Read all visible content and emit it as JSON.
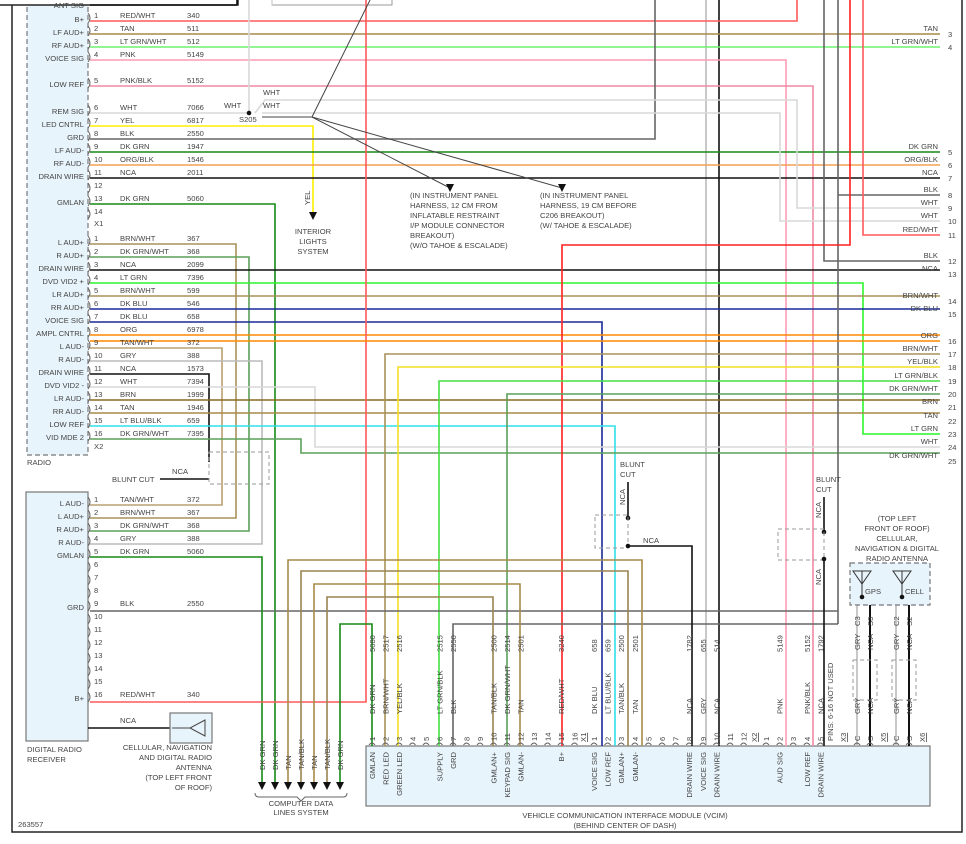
{
  "diagram_id": "263557",
  "wire_colors": {
    "RED/WHT": "#ff5a5a",
    "TAN": "#a88a4a",
    "LT GRN/WHT": "#6ef06e",
    "PNK": "#ff9cb4",
    "PNK/BLK": "#f08aa4",
    "WHT": "#d8d8d8",
    "YEL": "#ffee00",
    "BLK": "#666666",
    "DK GRN": "#168a16",
    "ORG/BLK": "#f4a050",
    "NCA": "#111111",
    "BRN/WHT": "#a8925a",
    "DK GRN/WHT": "#5aa05a",
    "LT GRN": "#2cf52c",
    "DK BLU": "#1a2a9a",
    "ORG": "#ff8800",
    "TAN/WHT": "#baa070",
    "GRY": "#bbbbbb",
    "BRN": "#8a6a20",
    "LT BLU/BLK": "#2fe0e8",
    "YEL/BLK": "#f2e020",
    "LT GRN/BLK": "#44e044",
    "TAN/BLK": "#9a8450",
    "RED": "#ff2020"
  },
  "radio": {
    "label": "RADIO",
    "ant_sig": "ANT SIG",
    "x1_label": "X1",
    "x2_label": "X2",
    "x1": [
      {
        "pin": "1",
        "func": "B+",
        "color": "RED/WHT",
        "circuit": "340"
      },
      {
        "pin": "2",
        "func": "LF AUD+",
        "color": "TAN",
        "circuit": "511"
      },
      {
        "pin": "3",
        "func": "RF AUD+",
        "color": "LT GRN/WHT",
        "circuit": "512"
      },
      {
        "pin": "4",
        "func": "VOICE SIG",
        "color": "PNK",
        "circuit": "5149"
      },
      {
        "pin": "5",
        "func": "LOW REF",
        "color": "PNK/BLK",
        "circuit": "5152"
      },
      {
        "pin": "6",
        "func": "REM SIG",
        "color": "WHT",
        "circuit": "7066"
      },
      {
        "pin": "7",
        "func": "LED CNTRL",
        "color": "YEL",
        "circuit": "6817"
      },
      {
        "pin": "8",
        "func": "GRD",
        "color": "BLK",
        "circuit": "2550"
      },
      {
        "pin": "9",
        "func": "LF AUD-",
        "color": "DK GRN",
        "circuit": "1947"
      },
      {
        "pin": "10",
        "func": "RF AUD-",
        "color": "ORG/BLK",
        "circuit": "1546"
      },
      {
        "pin": "11",
        "func": "DRAIN WIRE",
        "color": "NCA",
        "circuit": "2011"
      },
      {
        "pin": "12",
        "func": "",
        "color": "",
        "circuit": ""
      },
      {
        "pin": "13",
        "func": "GMLAN",
        "color": "DK GRN",
        "circuit": "5060"
      },
      {
        "pin": "14",
        "func": "",
        "color": "",
        "circuit": ""
      }
    ],
    "x2": [
      {
        "pin": "1",
        "func": "L AUD+",
        "color": "BRN/WHT",
        "circuit": "367"
      },
      {
        "pin": "2",
        "func": "R AUD+",
        "color": "DK GRN/WHT",
        "circuit": "368"
      },
      {
        "pin": "3",
        "func": "DRAIN WIRE",
        "color": "NCA",
        "circuit": "2099"
      },
      {
        "pin": "4",
        "func": "DVD VID2 +",
        "color": "LT GRN",
        "circuit": "7396"
      },
      {
        "pin": "5",
        "func": "LR AUD+",
        "color": "BRN/WHT",
        "circuit": "599"
      },
      {
        "pin": "6",
        "func": "RR AUD+",
        "color": "DK BLU",
        "circuit": "546"
      },
      {
        "pin": "7",
        "func": "VOICE SIG",
        "color": "DK BLU",
        "circuit": "658"
      },
      {
        "pin": "8",
        "func": "AMPL CNTRL",
        "color": "ORG",
        "circuit": "6978"
      },
      {
        "pin": "9",
        "func": "L AUD-",
        "color": "TAN/WHT",
        "circuit": "372"
      },
      {
        "pin": "10",
        "func": "R AUD-",
        "color": "GRY",
        "circuit": "388"
      },
      {
        "pin": "11",
        "func": "DRAIN WIRE",
        "color": "NCA",
        "circuit": "1573"
      },
      {
        "pin": "12",
        "func": "DVD VID2 -",
        "color": "WHT",
        "circuit": "7394"
      },
      {
        "pin": "13",
        "func": "LR AUD-",
        "color": "BRN",
        "circuit": "1999"
      },
      {
        "pin": "14",
        "func": "RR AUD-",
        "color": "TAN",
        "circuit": "1946"
      },
      {
        "pin": "15",
        "func": "LOW REF",
        "color": "LT BLU/BLK",
        "circuit": "659"
      },
      {
        "pin": "16",
        "func": "VID MDE 2",
        "color": "DK GRN/WHT",
        "circuit": "7395"
      }
    ]
  },
  "splice": {
    "id": "S205",
    "wht_labels": [
      "WHT",
      "WHT",
      "WHT"
    ],
    "note_1": [
      "(IN INSTRUMENT PANEL",
      "HARNESS, 12 CM FROM",
      "INFLATABLE RESTRAINT",
      "I/P MODULE CONNECTOR",
      "BREAKOUT)",
      "(W/O TAHOE & ESCALADE)"
    ],
    "note_2": [
      "(IN INSTRUMENT PANEL",
      "HARNESS, 19 CM BEFORE",
      "C206 BREAKOUT)",
      "(W/ TAHOE & ESCALADE)"
    ]
  },
  "interior_lights": {
    "wire": "YEL",
    "label": [
      "INTERIOR",
      "LIGHTS",
      "SYSTEM"
    ]
  },
  "right_connector": [
    {
      "pin": "3",
      "color": "TAN"
    },
    {
      "pin": "4",
      "color": "LT GRN/WHT"
    },
    {
      "pin": "5",
      "color": "DK GRN"
    },
    {
      "pin": "6",
      "color": "ORG/BLK"
    },
    {
      "pin": "7",
      "color": "NCA"
    },
    {
      "pin": "8",
      "color": "BLK"
    },
    {
      "pin": "9",
      "color": "WHT"
    },
    {
      "pin": "10",
      "color": "WHT"
    },
    {
      "pin": "11",
      "color": "RED/WHT"
    },
    {
      "pin": "12",
      "color": "BLK"
    },
    {
      "pin": "13",
      "color": "NCA"
    },
    {
      "pin": "14",
      "color": "BRN/WHT"
    },
    {
      "pin": "15",
      "color": "DK BLU"
    },
    {
      "pin": "16",
      "color": "ORG"
    },
    {
      "pin": "17",
      "color": "BRN/WHT"
    },
    {
      "pin": "18",
      "color": "YEL/BLK"
    },
    {
      "pin": "19",
      "color": "LT GRN/BLK"
    },
    {
      "pin": "20",
      "color": "DK GRN/WHT"
    },
    {
      "pin": "21",
      "color": "BRN"
    },
    {
      "pin": "22",
      "color": "TAN"
    },
    {
      "pin": "23",
      "color": "LT GRN"
    },
    {
      "pin": "24",
      "color": "WHT"
    },
    {
      "pin": "25",
      "color": "DK GRN/WHT"
    }
  ],
  "blunt_cut": {
    "label": "BLUNT CUT",
    "label_lines": [
      "BLUNT",
      "CUT"
    ],
    "wire": "NCA"
  },
  "drr": {
    "label": [
      "DIGITAL RADIO",
      "RECEIVER"
    ],
    "pins": [
      {
        "pin": "1",
        "func": "L AUD-",
        "color": "TAN/WHT",
        "circuit": "372"
      },
      {
        "pin": "2",
        "func": "L AUD+",
        "color": "BRN/WHT",
        "circuit": "367"
      },
      {
        "pin": "3",
        "func": "R AUD+",
        "color": "DK GRN/WHT",
        "circuit": "368"
      },
      {
        "pin": "4",
        "func": "R AUD-",
        "color": "GRY",
        "circuit": "388"
      },
      {
        "pin": "5",
        "func": "GMLAN",
        "color": "DK GRN",
        "circuit": "5060"
      },
      {
        "pin": "6",
        "func": "",
        "color": "",
        "circuit": ""
      },
      {
        "pin": "7",
        "func": "",
        "color": "",
        "circuit": ""
      },
      {
        "pin": "8",
        "func": "",
        "color": "",
        "circuit": ""
      },
      {
        "pin": "9",
        "func": "GRD",
        "color": "BLK",
        "circuit": "2550"
      },
      {
        "pin": "10",
        "func": "",
        "color": "",
        "circuit": ""
      },
      {
        "pin": "11",
        "func": "",
        "color": "",
        "circuit": ""
      },
      {
        "pin": "12",
        "func": "",
        "color": "",
        "circuit": ""
      },
      {
        "pin": "13",
        "func": "",
        "color": "",
        "circuit": ""
      },
      {
        "pin": "14",
        "func": "",
        "color": "",
        "circuit": ""
      },
      {
        "pin": "15",
        "func": "",
        "color": "",
        "circuit": ""
      },
      {
        "pin": "16",
        "func": "B+",
        "color": "RED/WHT",
        "circuit": "340"
      }
    ],
    "antenna_wire": "NCA",
    "antenna_label": [
      "CELLULAR, NAVIGATION",
      "AND DIGITAL RADIO",
      "ANTENNA",
      "(TOP LEFT FRONT",
      "OF ROOF)"
    ]
  },
  "computer_data_lines": {
    "wires": [
      "DK GRN",
      "DK GRN",
      "TAN",
      "TAN/BLK",
      "TAN",
      "TAN/BLK",
      "DK GRN"
    ],
    "label": [
      "COMPUTER DATA",
      "LINES SYSTEM"
    ]
  },
  "roof_antenna": {
    "label": [
      "(TOP LEFT",
      "FRONT OF ROOF)",
      "CELLULAR,",
      "NAVIGATION & DIGITAL",
      "RADIO ANTENNA"
    ],
    "gps": "GPS",
    "cell": "CELL",
    "terminals": [
      {
        "term": "C3",
        "color": "GRY"
      },
      {
        "term": "S3",
        "color": "NCA"
      },
      {
        "term": "C2",
        "color": "GRY"
      },
      {
        "term": "S2",
        "color": "NCA"
      }
    ]
  },
  "vcim": {
    "title": "VEHICLE COMMUNICATION INTERFACE MODULE (VCIM)",
    "subtitle": "(BEHIND CENTER OF DASH)",
    "not_used_note": "PINS: 6-16 NOT USED",
    "connectors": [
      {
        "name": "X1",
        "pins": [
          {
            "pin": "1",
            "func": "GMLAN",
            "color": "DK GRN",
            "circuit": "5080"
          },
          {
            "pin": "2",
            "func": "RED LED",
            "color": "BRN/WHT",
            "circuit": "2517"
          },
          {
            "pin": "3",
            "func": "GREEN LED",
            "color": "YEL/BLK",
            "circuit": "2516"
          },
          {
            "pin": "4",
            "func": "",
            "color": "",
            "circuit": ""
          },
          {
            "pin": "5",
            "func": "",
            "color": "",
            "circuit": ""
          },
          {
            "pin": "6",
            "func": "SUPPLY",
            "color": "LT GRN/BLK",
            "circuit": "2515"
          },
          {
            "pin": "7",
            "func": "GRD",
            "color": "BLK",
            "circuit": "2550"
          },
          {
            "pin": "8",
            "func": "",
            "color": "",
            "circuit": ""
          },
          {
            "pin": "9",
            "func": "",
            "color": "",
            "circuit": ""
          },
          {
            "pin": "10",
            "func": "GMLAN+",
            "color": "TAN/BLK",
            "circuit": "2500"
          },
          {
            "pin": "11",
            "func": "KEYPAD SIG",
            "color": "DK GRN/WHT",
            "circuit": "2514"
          },
          {
            "pin": "12",
            "func": "GMLAN-",
            "color": "TAN",
            "circuit": "2501"
          },
          {
            "pin": "13",
            "func": "",
            "color": "",
            "circuit": ""
          },
          {
            "pin": "14",
            "func": "",
            "color": "",
            "circuit": ""
          },
          {
            "pin": "15",
            "func": "B+",
            "color": "RED/WHT",
            "circuit": "3240"
          },
          {
            "pin": "16",
            "func": "",
            "color": "",
            "circuit": ""
          }
        ]
      },
      {
        "name": "X2",
        "pins": [
          {
            "pin": "1",
            "func": "VOICE SIG",
            "color": "DK BLU",
            "circuit": "658"
          },
          {
            "pin": "2",
            "func": "LOW REF",
            "color": "LT BLU/BLK",
            "circuit": "659"
          },
          {
            "pin": "3",
            "func": "GMLAN+",
            "color": "TAN/BLK",
            "circuit": "2500"
          },
          {
            "pin": "4",
            "func": "GMLAN-",
            "color": "TAN",
            "circuit": "2501"
          },
          {
            "pin": "5",
            "func": "",
            "color": "",
            "circuit": ""
          },
          {
            "pin": "6",
            "func": "",
            "color": "",
            "circuit": ""
          },
          {
            "pin": "7",
            "func": "",
            "color": "",
            "circuit": ""
          },
          {
            "pin": "8",
            "func": "DRAIN WIRE",
            "color": "NCA",
            "circuit": "1782"
          },
          {
            "pin": "9",
            "func": "VOICE SIG",
            "color": "GRY",
            "circuit": "655"
          },
          {
            "pin": "10",
            "func": "DRAIN WIRE",
            "color": "NCA",
            "circuit": "514"
          },
          {
            "pin": "11",
            "func": "",
            "color": "",
            "circuit": ""
          },
          {
            "pin": "12",
            "func": "",
            "color": "",
            "circuit": ""
          }
        ]
      },
      {
        "name": "X3",
        "pins": [
          {
            "pin": "1",
            "func": "",
            "color": "",
            "circuit": ""
          },
          {
            "pin": "2",
            "func": "AUD SIG",
            "color": "PNK",
            "circuit": "5149"
          },
          {
            "pin": "3",
            "func": "",
            "color": "",
            "circuit": ""
          },
          {
            "pin": "4",
            "func": "LOW REF",
            "color": "PNK/BLK",
            "circuit": "5152"
          },
          {
            "pin": "5",
            "func": "DRAIN WIRE",
            "color": "NCA",
            "circuit": "1792"
          }
        ]
      },
      {
        "name": "X5",
        "pins": [
          {
            "pin": "C",
            "func": "",
            "color": "GRY",
            "circuit": ""
          },
          {
            "pin": "S",
            "func": "",
            "color": "NCA",
            "circuit": ""
          }
        ]
      },
      {
        "name": "X6",
        "pins": [
          {
            "pin": "C",
            "func": "",
            "color": "GRY",
            "circuit": ""
          },
          {
            "pin": "S",
            "func": "",
            "color": "NCA",
            "circuit": ""
          }
        ]
      }
    ]
  }
}
